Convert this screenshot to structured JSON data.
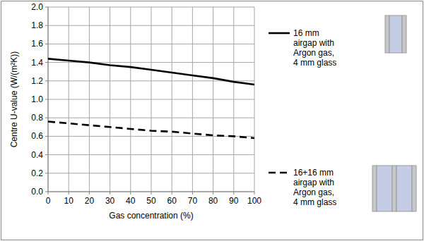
{
  "chart_data": {
    "type": "line",
    "x_label": "Gas concentration (%)",
    "y_label": "Centre U-value (W/(m²K))",
    "x": [
      0,
      10,
      20,
      30,
      40,
      50,
      60,
      70,
      80,
      90,
      100
    ],
    "series": [
      {
        "name": "16 mm airgap with Argon gas, 4 mm glass",
        "color": "#000000",
        "line_style": "solid",
        "values": [
          1.44,
          1.42,
          1.4,
          1.37,
          1.35,
          1.32,
          1.29,
          1.26,
          1.23,
          1.19,
          1.16
        ]
      },
      {
        "name": "16+16 mm airgap with Argon gas, 4 mm glass",
        "color": "#000000",
        "line_style": "dashed",
        "values": [
          0.76,
          0.74,
          0.72,
          0.7,
          0.68,
          0.66,
          0.65,
          0.63,
          0.61,
          0.6,
          0.58
        ]
      }
    ],
    "xlim": [
      0,
      100
    ],
    "xticks": [
      0,
      10,
      20,
      30,
      40,
      50,
      60,
      70,
      80,
      90,
      100
    ],
    "ylim": [
      0,
      2.0
    ],
    "yticks": [
      {
        "value": 0,
        "label": "0.0"
      },
      {
        "value": 0.2,
        "label": "0.2"
      },
      {
        "value": 0.4,
        "label": "0.4"
      },
      {
        "value": 0.6,
        "label": "0.6"
      },
      {
        "value": 0.8,
        "label": "0.8"
      },
      {
        "value": 1.0,
        "label": "1.0"
      },
      {
        "value": 1.2,
        "label": "1.2"
      },
      {
        "value": 1.4,
        "label": "1.4"
      },
      {
        "value": 1.6,
        "label": "1.6"
      },
      {
        "value": 1.8,
        "label": "1.8"
      },
      {
        "value": 2.0,
        "label": "2.0"
      }
    ],
    "grid": true,
    "legend": "right"
  }
}
